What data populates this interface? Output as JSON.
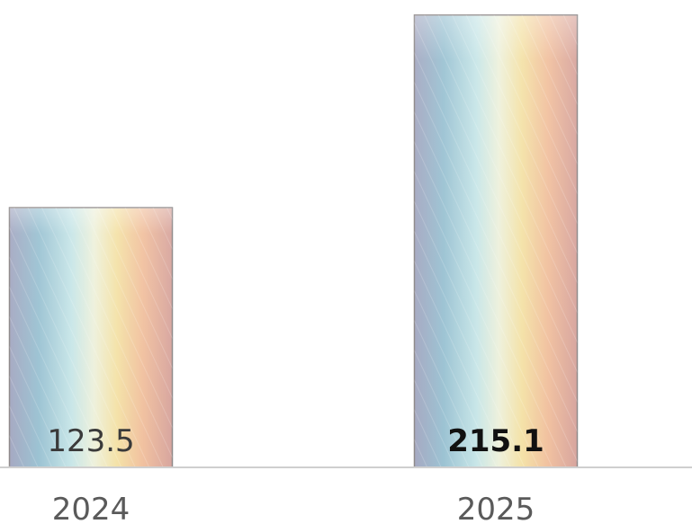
{
  "chart_data": {
    "type": "bar",
    "categories": [
      "2024",
      "2025"
    ],
    "values": [
      123.5,
      215.1
    ],
    "value_labels": [
      "123.5",
      "215.1"
    ],
    "title": "",
    "xlabel": "",
    "ylabel": "",
    "ylim": [
      0,
      218
    ],
    "grid": false,
    "legend": "none",
    "bar_fill": "rainbow-gradient",
    "colors": {
      "gradient": [
        "#9fa9c4",
        "#9fc6d6",
        "#d9ecef",
        "#f3e7b9",
        "#f0c2a4",
        "#d9a69d"
      ],
      "axis": "#cfcfcf",
      "label": "#5a5a5a"
    }
  }
}
